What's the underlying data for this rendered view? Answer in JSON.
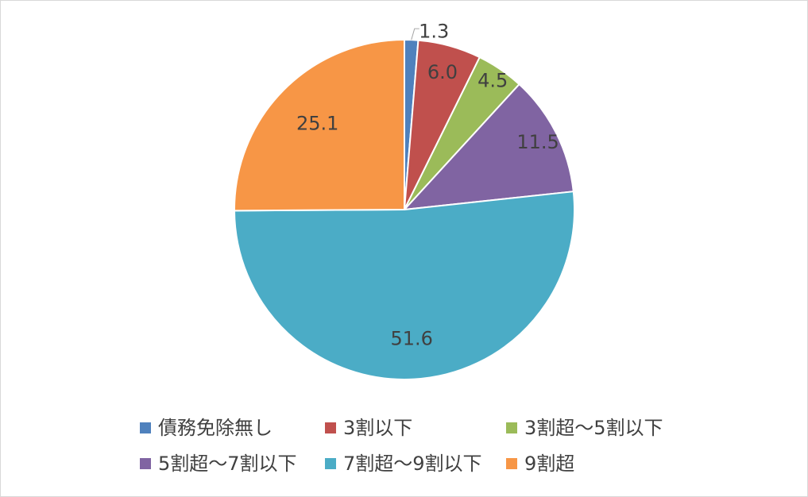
{
  "chart_data": {
    "type": "pie",
    "categories": [
      "債務免除無し",
      "3割以下",
      "3割超～5割以下",
      "5割超～7割以下",
      "7割超～9割以下",
      "9割超"
    ],
    "values": [
      1.3,
      6.0,
      4.5,
      11.5,
      51.6,
      25.1
    ],
    "value_labels": [
      "1.3",
      "6.0",
      "4.5",
      "11.5",
      "51.6",
      "25.1"
    ],
    "colors": [
      "#4f81bd",
      "#c0504d",
      "#9bbb59",
      "#8064a2",
      "#4bacc6",
      "#f79646"
    ],
    "start_angle_deg": 0,
    "direction": "clockwise",
    "legend_position": "bottom",
    "title": ""
  }
}
